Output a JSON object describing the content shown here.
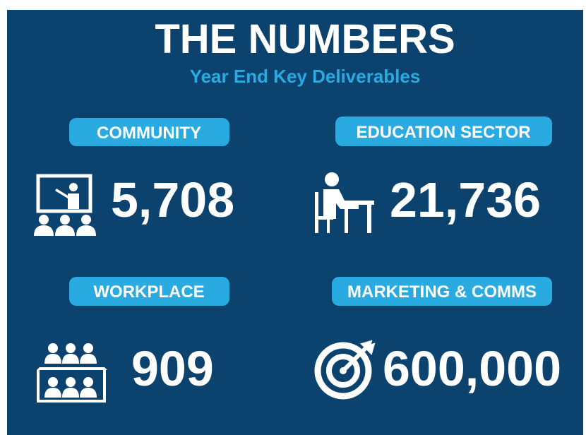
{
  "header": {
    "title": "THE NUMBERS",
    "subtitle": "Year End Key Deliverables"
  },
  "items": [
    {
      "label": "COMMUNITY",
      "value": "5,708"
    },
    {
      "label": "EDUCATION SECTOR",
      "value": "21,736"
    },
    {
      "label": "WORKPLACE",
      "value": "909"
    },
    {
      "label": "MARKETING & COMMS",
      "value": "600,000"
    }
  ]
}
